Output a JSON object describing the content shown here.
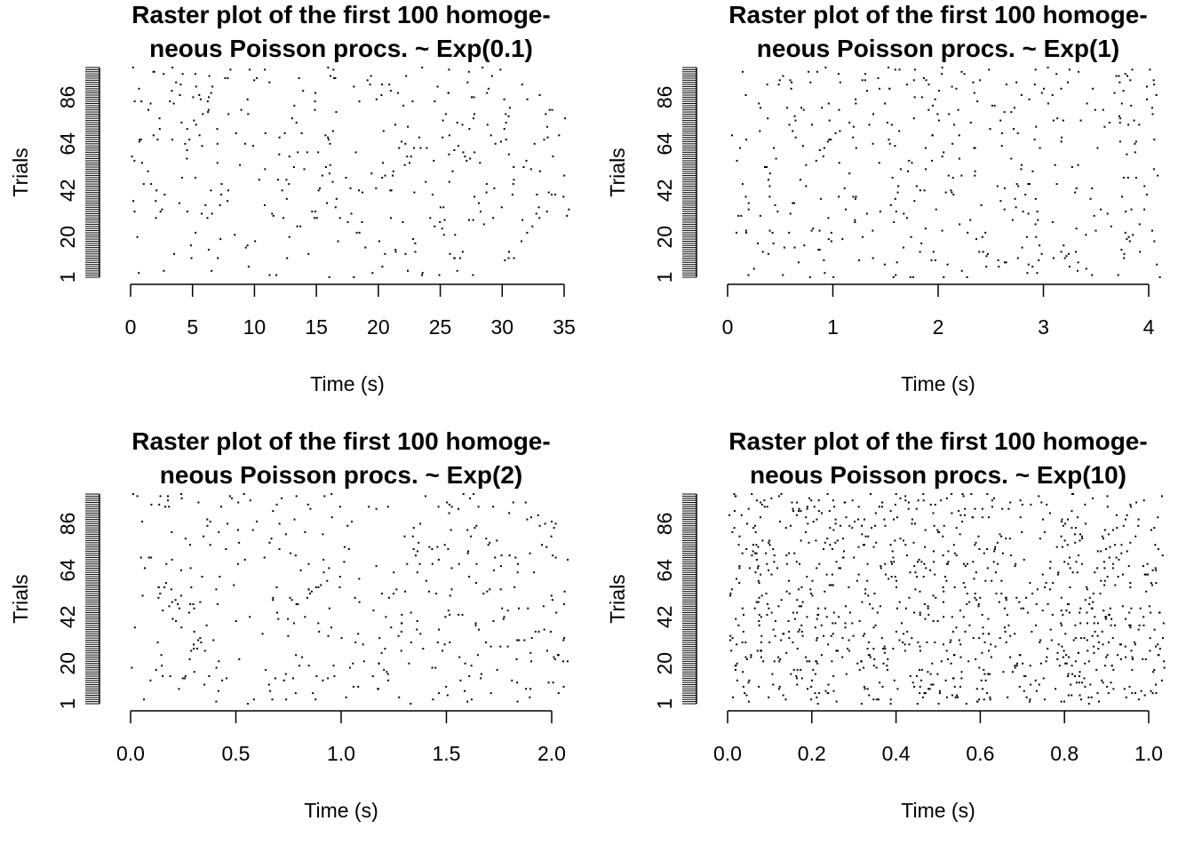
{
  "chart_data": [
    {
      "type": "scatter",
      "title_lines": [
        "Raster plot of the first 100 homoge-",
        "neous Poisson procs. ~ Exp(0.1)"
      ],
      "xlabel": "Time (s)",
      "ylabel": "Trials",
      "xticks": [
        "0",
        "5",
        "10",
        "15",
        "20",
        "25",
        "30",
        "35"
      ],
      "xlim": [
        0,
        35
      ],
      "yticks": [
        "1",
        "20",
        "42",
        "64",
        "86"
      ],
      "ylim": [
        1,
        100
      ],
      "grid": false,
      "point_color": "#000000",
      "rate": 0.1,
      "n_trials": 100,
      "approx_spike_count": 360
    },
    {
      "type": "scatter",
      "title_lines": [
        "Raster plot of the first 100 homoge-",
        "neous Poisson procs. ~ Exp(1)"
      ],
      "xlabel": "Time (s)",
      "ylabel": "Trials",
      "xticks": [
        "0",
        "1",
        "2",
        "3",
        "4"
      ],
      "xlim": [
        0,
        4
      ],
      "yticks": [
        "1",
        "20",
        "42",
        "64",
        "86"
      ],
      "ylim": [
        1,
        100
      ],
      "grid": false,
      "point_color": "#000000",
      "rate": 1,
      "n_trials": 100,
      "approx_spike_count": 410
    },
    {
      "type": "scatter",
      "title_lines": [
        "Raster plot of the first 100 homoge-",
        "neous Poisson procs. ~ Exp(2)"
      ],
      "xlabel": "Time (s)",
      "ylabel": "Trials",
      "xticks": [
        "0.0",
        "0.5",
        "1.0",
        "1.5",
        "2.0"
      ],
      "xlim": [
        0,
        2
      ],
      "yticks": [
        "1",
        "20",
        "42",
        "64",
        "86"
      ],
      "ylim": [
        1,
        100
      ],
      "grid": false,
      "point_color": "#000000",
      "rate": 2,
      "n_trials": 100,
      "approx_spike_count": 410
    },
    {
      "type": "scatter",
      "title_lines": [
        "Raster plot of the first 100 homoge-",
        "neous Poisson procs. ~ Exp(10)"
      ],
      "xlabel": "Time (s)",
      "ylabel": "Trials",
      "xticks": [
        "0.0",
        "0.2",
        "0.4",
        "0.6",
        "0.8",
        "1.0"
      ],
      "xlim": [
        0,
        1
      ],
      "yticks": [
        "1",
        "20",
        "42",
        "64",
        "86"
      ],
      "ylim": [
        1,
        100
      ],
      "grid": false,
      "point_color": "#000000",
      "rate": 10,
      "n_trials": 100,
      "approx_spike_count": 1000
    }
  ]
}
